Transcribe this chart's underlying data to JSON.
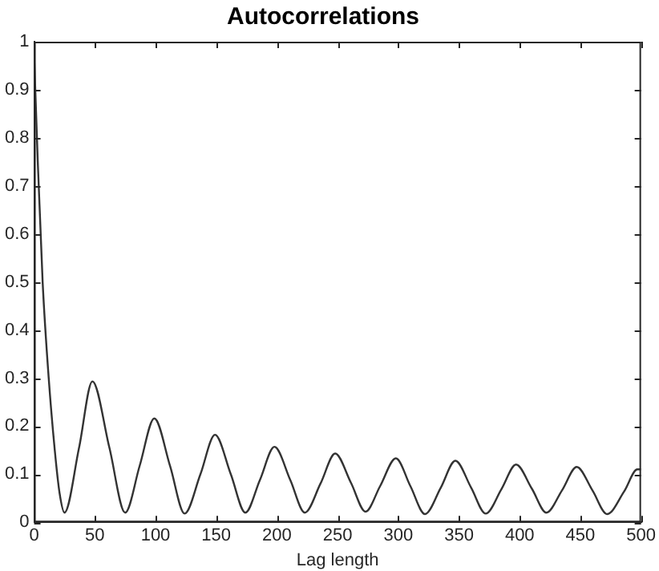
{
  "chart_data": {
    "type": "line",
    "title": "Autocorrelations",
    "xlabel": "Lag length",
    "x": [
      0,
      3,
      7,
      12,
      17,
      21,
      25,
      37,
      48,
      62,
      75,
      87,
      99,
      112,
      124,
      137,
      149,
      162,
      174,
      186,
      198,
      211,
      223,
      236,
      248,
      261,
      273,
      285,
      298,
      310,
      322,
      335,
      347,
      360,
      372,
      385,
      397,
      410,
      422,
      435,
      447,
      460,
      472,
      486,
      497,
      500
    ],
    "series": [
      {
        "color": "#333333",
        "values": [
          0.97,
          0.75,
          0.5,
          0.3,
          0.15,
          0.06,
          0.02,
          0.155,
          0.293,
          0.155,
          0.02,
          0.118,
          0.216,
          0.117,
          0.018,
          0.1,
          0.182,
          0.1,
          0.02,
          0.088,
          0.157,
          0.088,
          0.02,
          0.081,
          0.143,
          0.082,
          0.022,
          0.075,
          0.133,
          0.075,
          0.017,
          0.072,
          0.128,
          0.072,
          0.018,
          0.069,
          0.12,
          0.07,
          0.02,
          0.067,
          0.115,
          0.066,
          0.017,
          0.064,
          0.11,
          0.11
        ]
      }
    ],
    "xlim": [
      0,
      500
    ],
    "xticks": [
      0,
      50,
      100,
      150,
      200,
      250,
      300,
      350,
      400,
      450,
      500
    ],
    "ylim": [
      0,
      1
    ],
    "yticks": [
      0,
      0.1,
      0.2,
      0.3,
      0.4,
      0.5,
      0.6,
      0.7,
      0.8,
      0.9,
      1
    ],
    "grid": false,
    "legend": false,
    "marker": "none",
    "line_style": "solid"
  }
}
